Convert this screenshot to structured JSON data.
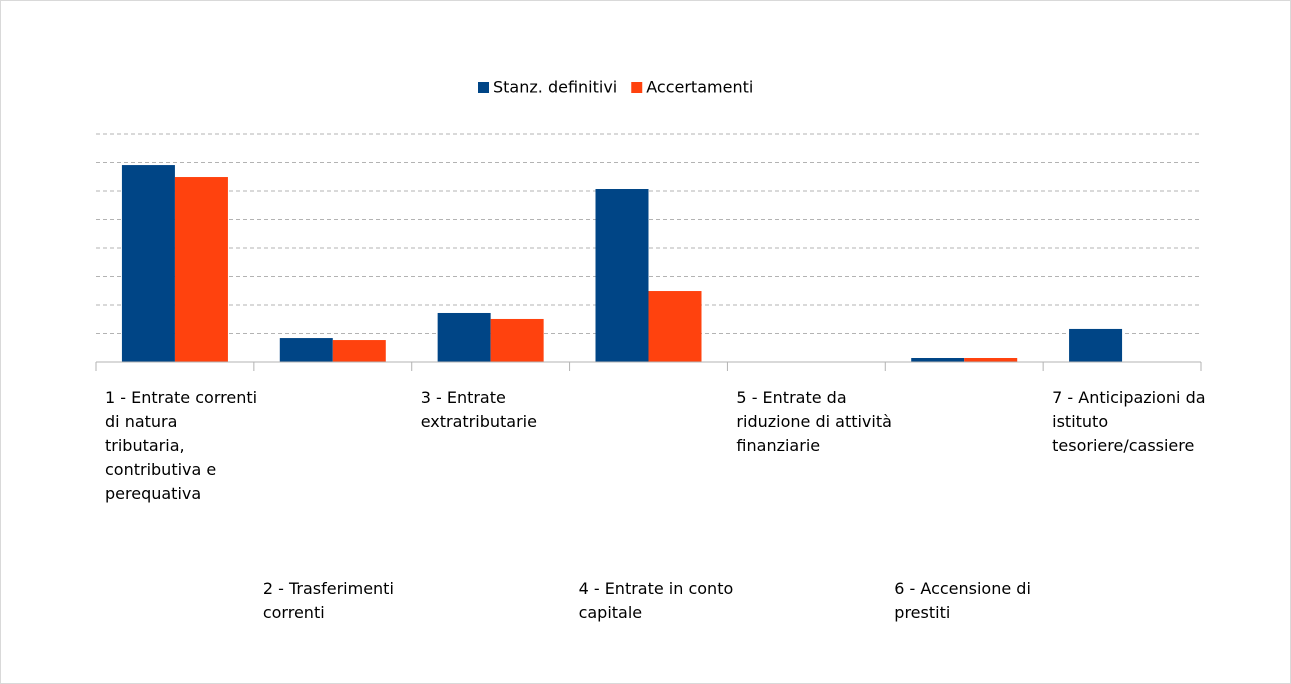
{
  "chart_data": {
    "type": "bar",
    "categories": [
      "1 - Entrate correnti di natura tributaria, contributiva e perequativa",
      "2 - Trasferimenti correnti",
      "3 - Entrate extratributarie",
      "4 - Entrate in conto capitale",
      "5 - Entrate da riduzione di attività finanziarie",
      "6 - Accensione di prestiti",
      "7 - Anticipazioni da istituto tesoriere/cassiere"
    ],
    "series": [
      {
        "name": "Stanz. definitivi",
        "color": "#004586",
        "values": [
          6.91,
          0.84,
          1.72,
          6.07,
          0,
          0.14,
          1.16
        ]
      },
      {
        "name": "Accertamenti",
        "color": "#ff420e",
        "values": [
          6.49,
          0.77,
          1.51,
          2.49,
          0,
          0.14,
          0
        ]
      }
    ],
    "ylim": [
      0,
      8
    ],
    "yticks": [
      0,
      1,
      2,
      3,
      4,
      5,
      6,
      7,
      8
    ],
    "grid": true,
    "legend": "top"
  }
}
